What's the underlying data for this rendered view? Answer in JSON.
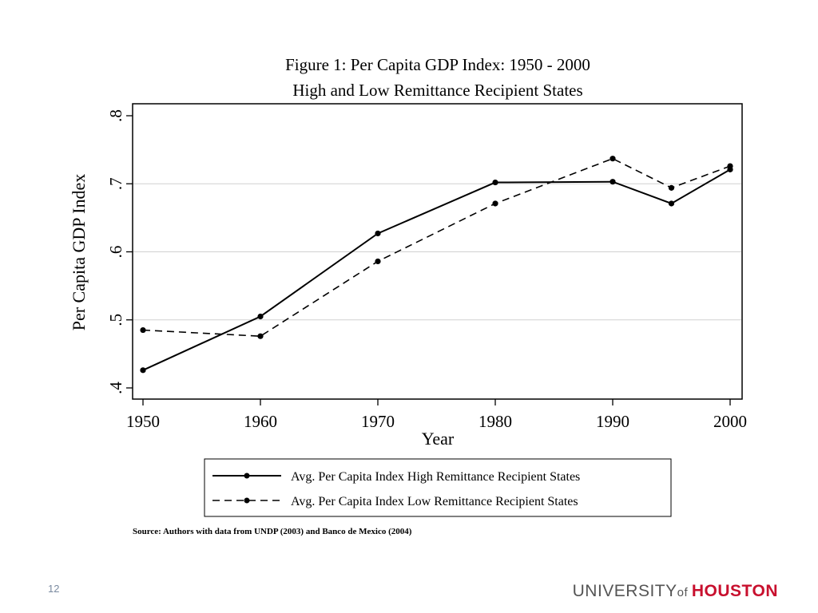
{
  "chart_data": {
    "type": "line",
    "title": "Figure 1: Per Capita GDP Index: 1950 - 2000",
    "subtitle": "High and Low Remittance Recipient States",
    "xlabel": "Year",
    "ylabel": "Per Capita GDP Index",
    "x": [
      1950,
      1960,
      1970,
      1980,
      1990,
      1995,
      2000
    ],
    "xlim": [
      1950,
      2000
    ],
    "ylim": [
      0.4,
      0.8
    ],
    "x_ticks": [
      "1950",
      "1960",
      "1970",
      "1980",
      "1990",
      "2000"
    ],
    "y_ticks": [
      ".4",
      ".5",
      ".6",
      ".7",
      ".8"
    ],
    "grid": "horizontal",
    "legend_position": "bottom",
    "series": [
      {
        "name": "Avg. Per Capita Index High Remittance Recipient States",
        "style": "solid",
        "color": "#000000",
        "values": [
          0.426,
          0.505,
          0.627,
          0.702,
          0.703,
          0.671,
          0.721
        ]
      },
      {
        "name": "Avg. Per Capita Index Low Remittance Recipient States",
        "style": "dashed",
        "color": "#000000",
        "values": [
          0.485,
          0.476,
          0.586,
          0.671,
          0.737,
          0.694,
          0.726
        ]
      }
    ],
    "source_note": "Source: Authors with data from UNDP (2003) and Banco de Mexico (2004)"
  },
  "slide": {
    "page_number": "12",
    "brand_prefix": "UNIVERSITY",
    "brand_of": "of",
    "brand_name": "HOUSTON",
    "brand_color": "#c8102e"
  }
}
